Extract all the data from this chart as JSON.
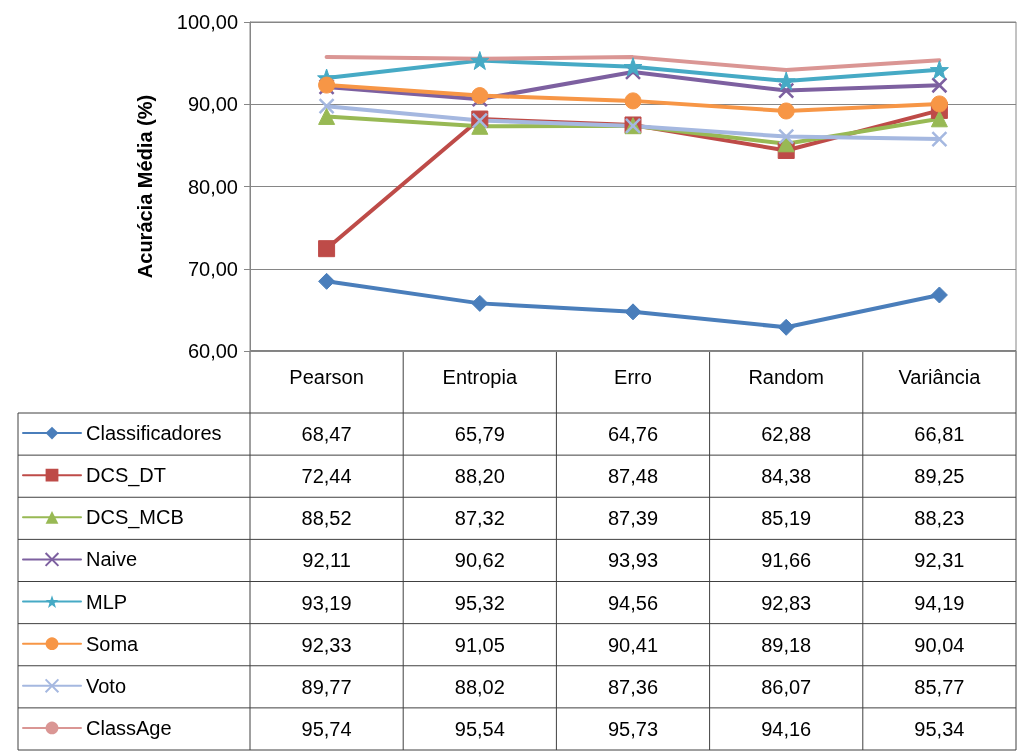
{
  "chart_data": {
    "type": "line",
    "ylabel": "Acurácia Média (%)",
    "categories": [
      "Pearson",
      "Entropia",
      "Erro",
      "Random",
      "Variância"
    ],
    "ylim": [
      60,
      100
    ],
    "yticks": [
      {
        "value": 60,
        "label": "60,00"
      },
      {
        "value": 70,
        "label": "70,00"
      },
      {
        "value": 80,
        "label": "80,00"
      },
      {
        "value": 90,
        "label": "90,00"
      },
      {
        "value": 100,
        "label": "100,00"
      }
    ],
    "grid": "y",
    "legend": "left",
    "series": [
      {
        "name": "Classificadores",
        "color": "#4a7ebb",
        "marker": "diamond",
        "values": [
          68.47,
          65.79,
          64.76,
          62.88,
          66.81
        ],
        "value_labels": [
          "68,47",
          "65,79",
          "64,76",
          "62,88",
          "66,81"
        ]
      },
      {
        "name": "DCS_DT",
        "color": "#be4b48",
        "marker": "square",
        "values": [
          72.44,
          88.2,
          87.48,
          84.38,
          89.25
        ],
        "value_labels": [
          "72,44",
          "88,20",
          "87,48",
          "84,38",
          "89,25"
        ]
      },
      {
        "name": "DCS_MCB",
        "color": "#98b954",
        "marker": "triangle",
        "values": [
          88.52,
          87.32,
          87.39,
          85.19,
          88.23
        ],
        "value_labels": [
          "88,52",
          "87,32",
          "87,39",
          "85,19",
          "88,23"
        ]
      },
      {
        "name": "Naive",
        "color": "#7d60a0",
        "marker": "cross",
        "values": [
          92.11,
          90.62,
          93.93,
          91.66,
          92.31
        ],
        "value_labels": [
          "92,11",
          "90,62",
          "93,93",
          "91,66",
          "92,31"
        ]
      },
      {
        "name": "MLP",
        "color": "#46aac5",
        "marker": "star",
        "values": [
          93.19,
          95.32,
          94.56,
          92.83,
          94.19
        ],
        "value_labels": [
          "93,19",
          "95,32",
          "94,56",
          "92,83",
          "94,19"
        ]
      },
      {
        "name": "Soma",
        "color": "#f79646",
        "marker": "circle",
        "values": [
          92.33,
          91.05,
          90.41,
          89.18,
          90.04
        ],
        "value_labels": [
          "92,33",
          "91,05",
          "90,41",
          "89,18",
          "90,04"
        ]
      },
      {
        "name": "Voto",
        "color": "#a5b8e0",
        "marker": "cross",
        "values": [
          89.77,
          88.02,
          87.36,
          86.07,
          85.77
        ],
        "value_labels": [
          "89,77",
          "88,02",
          "87,36",
          "86,07",
          "85,77"
        ]
      },
      {
        "name": "ClassAge",
        "color": "#da9694",
        "marker": "none",
        "values": [
          95.74,
          95.54,
          95.73,
          94.16,
          95.34
        ],
        "value_labels": [
          "95,74",
          "95,54",
          "95,73",
          "94,16",
          "95,34"
        ]
      }
    ]
  }
}
